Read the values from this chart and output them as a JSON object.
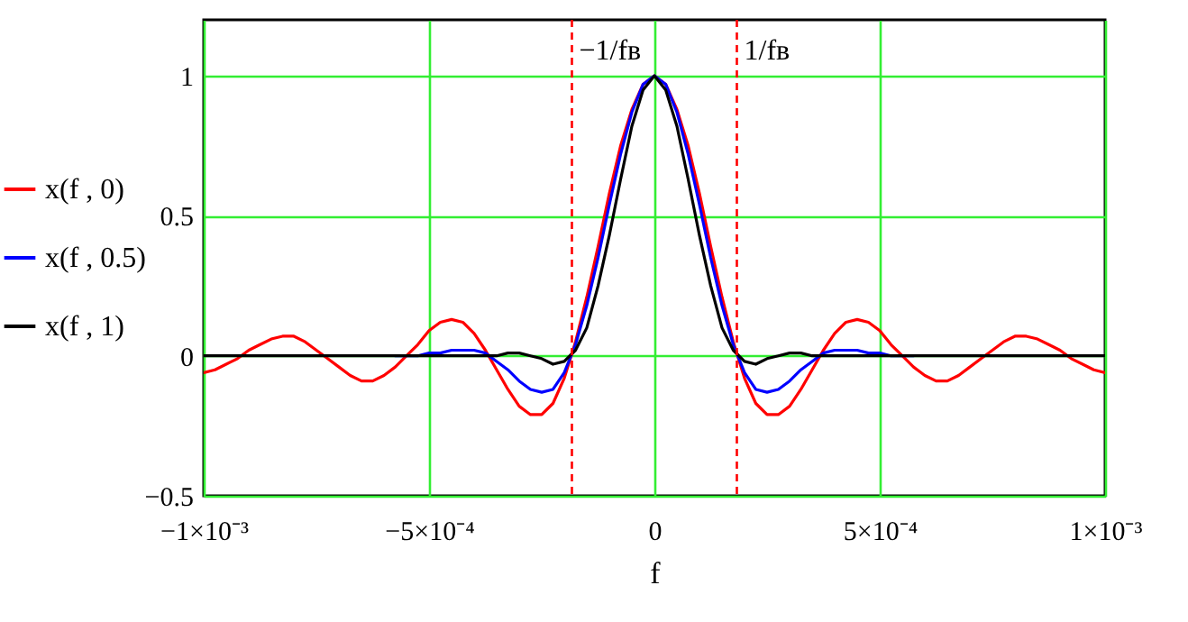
{
  "chart_data": {
    "type": "line",
    "xlabel": "f",
    "x": [
      -0.001,
      -0.000975,
      -0.00095,
      -0.000925,
      -0.0009,
      -0.000875,
      -0.00085,
      -0.000825,
      -0.0008,
      -0.000775,
      -0.00075,
      -0.000725,
      -0.0007,
      -0.000675,
      -0.00065,
      -0.000625,
      -0.0006,
      -0.000575,
      -0.00055,
      -0.000525,
      -0.0005,
      -0.000475,
      -0.00045,
      -0.000425,
      -0.0004,
      -0.000375,
      -0.00035,
      -0.000325,
      -0.0003,
      -0.000275,
      -0.00025,
      -0.000225,
      -0.0002,
      -0.000175,
      -0.00015,
      -0.000125,
      -0.0001,
      -7.5e-05,
      -5e-05,
      -2.5e-05,
      0,
      2.5e-05,
      5e-05,
      7.5e-05,
      0.0001,
      0.000125,
      0.00015,
      0.000175,
      0.0002,
      0.000225,
      0.00025,
      0.000275,
      0.0003,
      0.000325,
      0.00035,
      0.000375,
      0.0004,
      0.000425,
      0.00045,
      0.000475,
      0.0005,
      0.000525,
      0.00055,
      0.000575,
      0.0006,
      0.000625,
      0.00065,
      0.000675,
      0.0007,
      0.000725,
      0.00075,
      0.000775,
      0.0008,
      0.000825,
      0.00085,
      0.000875,
      0.0009,
      0.000925,
      0.00095,
      0.000975,
      0.001
    ],
    "series": [
      {
        "name": "x(f , 0)",
        "color": "#ff0000",
        "values": [
          -0.06,
          -0.05,
          -0.03,
          -0.01,
          0.02,
          0.04,
          0.06,
          0.07,
          0.07,
          0.05,
          0.02,
          -0.01,
          -0.04,
          -0.07,
          -0.09,
          -0.09,
          -0.07,
          -0.04,
          0,
          0.04,
          0.09,
          0.12,
          0.13,
          0.12,
          0.08,
          0.02,
          -0.05,
          -0.12,
          -0.18,
          -0.21,
          -0.21,
          -0.17,
          -0.08,
          0.05,
          0.21,
          0.39,
          0.58,
          0.75,
          0.88,
          0.97,
          1,
          0.97,
          0.88,
          0.75,
          0.58,
          0.39,
          0.21,
          0.05,
          -0.08,
          -0.17,
          -0.21,
          -0.21,
          -0.18,
          -0.12,
          -0.05,
          0.02,
          0.08,
          0.12,
          0.13,
          0.12,
          0.09,
          0.04,
          0,
          -0.04,
          -0.07,
          -0.09,
          -0.09,
          -0.07,
          -0.04,
          -0.01,
          0.02,
          0.05,
          0.07,
          0.07,
          0.06,
          0.04,
          0.02,
          -0.01,
          -0.03,
          -0.05,
          -0.06
        ]
      },
      {
        "name": "x(f , 0.5)",
        "color": "#0000ff",
        "values": [
          null,
          null,
          null,
          null,
          null,
          null,
          null,
          null,
          null,
          null,
          null,
          null,
          null,
          null,
          null,
          null,
          null,
          0,
          0,
          0,
          0.01,
          0.01,
          0.02,
          0.02,
          0.02,
          0.01,
          -0.02,
          -0.05,
          -0.09,
          -0.12,
          -0.13,
          -0.12,
          -0.06,
          0.04,
          0.18,
          0.35,
          0.54,
          0.72,
          0.87,
          0.97,
          1,
          0.97,
          0.87,
          0.72,
          0.54,
          0.35,
          0.18,
          0.04,
          -0.06,
          -0.12,
          -0.13,
          -0.12,
          -0.09,
          -0.05,
          -0.02,
          0.01,
          0.02,
          0.02,
          0.02,
          0.01,
          0.01,
          0,
          0,
          0,
          null,
          null,
          null,
          null,
          null,
          null,
          null,
          null,
          null,
          null,
          null,
          null,
          null,
          null,
          null,
          null,
          null
        ]
      },
      {
        "name": "x(f , 1)",
        "color": "#000000",
        "values": [
          0,
          0,
          0,
          0,
          0,
          0,
          0,
          0,
          0,
          0,
          0,
          0,
          0,
          0,
          0,
          0,
          0,
          0,
          0,
          0,
          0,
          0,
          0,
          0,
          0,
          0,
          0,
          0.01,
          0.01,
          0,
          -0.01,
          -0.03,
          -0.02,
          0.02,
          0.1,
          0.25,
          0.43,
          0.63,
          0.82,
          0.95,
          1,
          0.95,
          0.82,
          0.63,
          0.43,
          0.25,
          0.1,
          0.02,
          -0.02,
          -0.03,
          -0.01,
          0,
          0.01,
          0.01,
          0,
          0,
          0,
          0,
          0,
          0,
          0,
          0,
          0,
          0,
          0,
          0,
          0,
          0,
          0,
          0,
          0,
          0,
          0,
          0,
          0,
          0,
          0,
          0,
          0,
          0,
          0
        ]
      }
    ],
    "xlim": [
      -0.001,
      0.001
    ],
    "xticks": [
      {
        "value": -0.001,
        "label": "−1×10⁻³"
      },
      {
        "value": -0.0005,
        "label": "−5×10⁻⁴"
      },
      0,
      {
        "value": 0.0005,
        "label": "5×10⁻⁴"
      },
      {
        "value": 0.001,
        "label": "1×10⁻³"
      }
    ],
    "ylim": [
      -0.5,
      1.2
    ],
    "yticks": [
      {
        "value": -0.5,
        "label": "−0.5"
      },
      0,
      0.5,
      1
    ],
    "ref_lines": [
      {
        "axis": "x",
        "value": -0.000183,
        "label": "−1/fв",
        "color": "#ff0000",
        "line_style": "dashed"
      },
      {
        "axis": "x",
        "value": 0.000183,
        "label": "1/fв",
        "color": "#ff0000",
        "line_style": "dashed"
      }
    ],
    "grid": true,
    "legend": "left",
    "marker": "none",
    "line_style": "solid"
  }
}
